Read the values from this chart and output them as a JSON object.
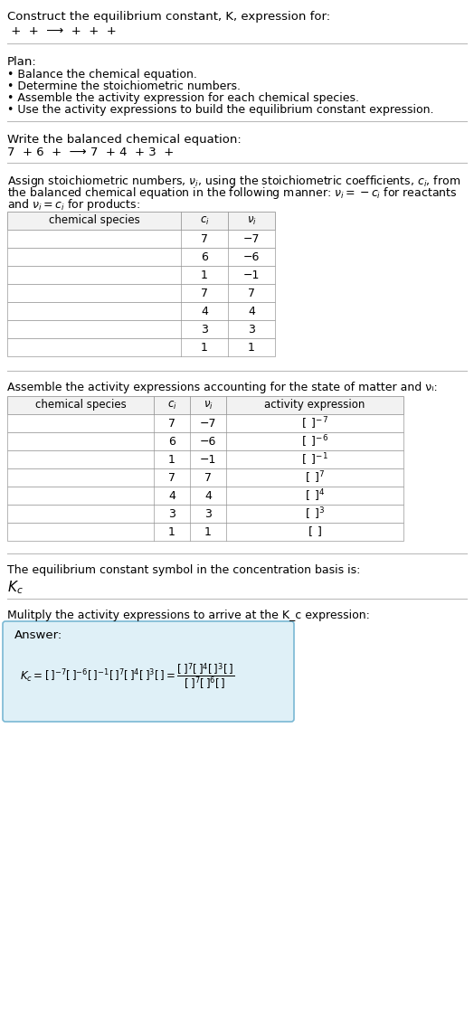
{
  "title": "Construct the equilibrium constant, K, expression for:",
  "subtitle": " +  +  ⟶  +  +  + ",
  "plan_title": "Plan:",
  "plan_items": [
    "• Balance the chemical equation.",
    "• Determine the stoichiometric numbers.",
    "• Assemble the activity expression for each chemical species.",
    "• Use the activity expressions to build the equilibrium constant expression."
  ],
  "balanced_eq_label": "Write the balanced chemical equation:",
  "balanced_eq": "7  + 6  +  ⟶ 7  + 4  + 3  + ",
  "stoich_label_parts": [
    "Assign stoichiometric numbers, ν",
    "i",
    ", using the stoichiometric coefficients, c",
    "i",
    ", from"
  ],
  "stoich_label_line2": "the balanced chemical equation in the following manner: νᵢ = −cᵢ for reactants",
  "stoich_label_line3": "and νᵢ = cᵢ for products:",
  "table1_headers": [
    "chemical species",
    "c_i",
    "v_i"
  ],
  "table1_rows": [
    [
      "",
      "7",
      "−7"
    ],
    [
      "",
      "6",
      "−6"
    ],
    [
      "",
      "1",
      "−1"
    ],
    [
      "",
      "7",
      "7"
    ],
    [
      "",
      "4",
      "4"
    ],
    [
      "",
      "3",
      "3"
    ],
    [
      "",
      "1",
      "1"
    ]
  ],
  "activity_label": "Assemble the activity expressions accounting for the state of matter and νᵢ:",
  "table2_headers": [
    "chemical species",
    "c_i",
    "v_i",
    "activity expression"
  ],
  "table2_rows": [
    [
      "",
      "7",
      "−7"
    ],
    [
      "",
      "6",
      "−6"
    ],
    [
      "",
      "1",
      "−1"
    ],
    [
      "",
      "7",
      "7"
    ],
    [
      "",
      "4",
      "4"
    ],
    [
      "",
      "3",
      "3"
    ],
    [
      "",
      "1",
      "1"
    ]
  ],
  "act_exprs": [
    "[]^{-7}",
    "[]^{-6}",
    "[]^{-1}",
    "[]^{7}",
    "[]^{4}",
    "[]^{3}",
    "[]"
  ],
  "kc_symbol_label": "The equilibrium constant symbol in the concentration basis is:",
  "multiply_label": "Mulitply the activity expressions to arrive at the K_c expression:",
  "answer_label": "Answer:",
  "bg_color": "#ffffff",
  "table_bg": "#ffffff",
  "table_header_bg": "#f2f2f2",
  "answer_box_bg": "#dff0f7",
  "answer_box_border": "#7ab8d4",
  "separator_color": "#bbbbbb"
}
